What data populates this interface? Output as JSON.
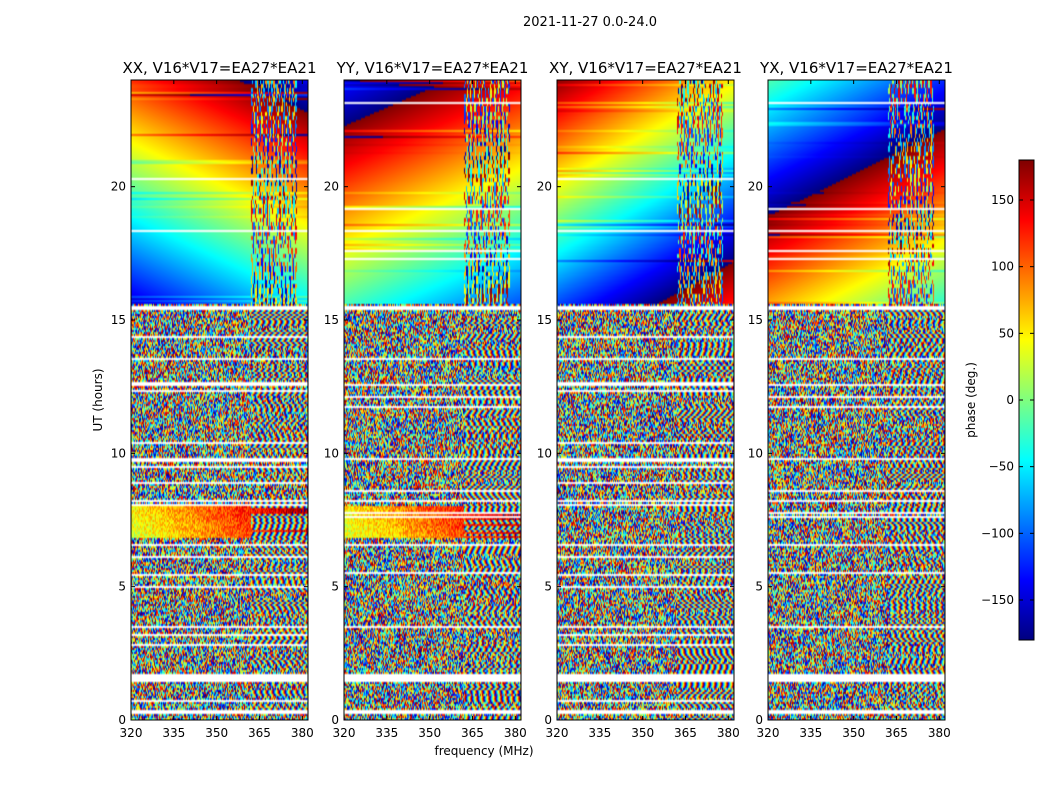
{
  "figure": {
    "suptitle": "2021-11-27 0.0-24.0"
  },
  "chart_data": {
    "type": "heatmap",
    "title": "2021-11-27 0.0-24.0",
    "xlabel": "frequency (MHz)",
    "ylabel": "UT (hours)",
    "xlim": [
      320,
      382
    ],
    "ylim": [
      0,
      24
    ],
    "x_ticks": [
      320,
      335,
      350,
      365,
      380
    ],
    "y_ticks": [
      0,
      5,
      10,
      15,
      20
    ],
    "grid": false,
    "panels": [
      {
        "title": "XX, V16*V17=EA27*EA21",
        "polarization": "XX"
      },
      {
        "title": "YY, V16*V17=EA27*EA21",
        "polarization": "YY"
      },
      {
        "title": "XY, V16*V17=EA27*EA21",
        "polarization": "XY"
      },
      {
        "title": "YX, V16*V17=EA27*EA21",
        "polarization": "YX"
      }
    ],
    "colorbar": {
      "label": "phase (deg.)",
      "range": [
        -180,
        180
      ],
      "ticks": [
        -150,
        -100,
        -50,
        0,
        50,
        100,
        150
      ],
      "tick_labels": [
        "−150",
        "−100",
        "−50",
        "0",
        "50",
        "100",
        "150"
      ],
      "colormap": "jet"
    },
    "flagged_rows_hours": [
      0.3,
      1.5,
      1.65,
      3.5,
      6.55,
      8.2,
      9.8,
      12.55,
      13.55,
      15.45
    ],
    "coherent_band_hours": [
      15.6,
      24
    ]
  },
  "colors": {
    "background": "#ffffff",
    "axes": "#000000",
    "flag": "#ffffff",
    "jet": [
      "#00007f",
      "#0000ff",
      "#007fff",
      "#00ffff",
      "#7fff7f",
      "#ffff00",
      "#ff7f00",
      "#ff0000",
      "#7f0000"
    ]
  }
}
